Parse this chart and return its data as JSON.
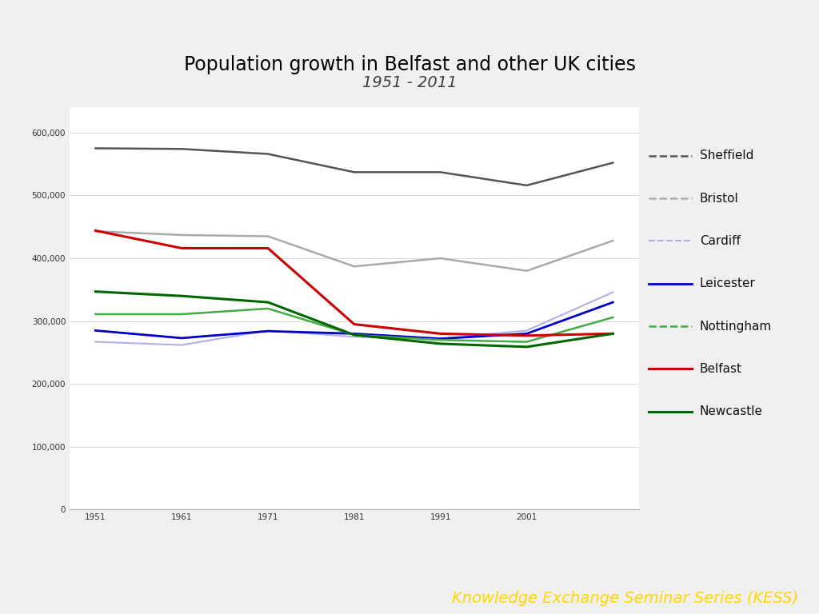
{
  "title": "Population growth in Belfast and other UK cities",
  "subtitle": "1951 - 2011",
  "years": [
    1951,
    1961,
    1971,
    1981,
    1991,
    2001,
    2011
  ],
  "series": {
    "Sheffield": {
      "values": [
        575000,
        574000,
        566000,
        537000,
        537000,
        516000,
        552000
      ],
      "color": "#555555",
      "linewidth": 1.8,
      "linestyle": "-"
    },
    "Bristol": {
      "values": [
        443000,
        437000,
        435000,
        387000,
        400000,
        380000,
        428000
      ],
      "color": "#aaaaaa",
      "linewidth": 1.8,
      "linestyle": "-"
    },
    "Cardiff": {
      "values": [
        267000,
        262000,
        285000,
        275000,
        272000,
        285000,
        346000
      ],
      "color": "#b0b0e8",
      "linewidth": 1.5,
      "linestyle": "-"
    },
    "Leicester": {
      "values": [
        285000,
        273000,
        284000,
        280000,
        272000,
        280000,
        330000
      ],
      "color": "#0000cc",
      "linewidth": 2.0,
      "linestyle": "-"
    },
    "Nottingham": {
      "values": [
        311000,
        311000,
        320000,
        278000,
        270000,
        267000,
        306000
      ],
      "color": "#44aa44",
      "linewidth": 1.8,
      "linestyle": "-"
    },
    "Belfast": {
      "values": [
        444000,
        416000,
        416000,
        295000,
        280000,
        277000,
        280000
      ],
      "color": "#cc0000",
      "linewidth": 2.2,
      "linestyle": "-"
    },
    "Newcastle": {
      "values": [
        347000,
        340000,
        330000,
        278000,
        264000,
        259000,
        280000
      ],
      "color": "#006600",
      "linewidth": 2.2,
      "linestyle": "-"
    }
  },
  "ylim": [
    0,
    640000
  ],
  "yticks": [
    0,
    100000,
    200000,
    300000,
    400000,
    500000,
    600000
  ],
  "xticks": [
    1951,
    1961,
    1971,
    1981,
    1991,
    2001
  ],
  "slide_bg": "#f0f0f0",
  "chart_bg": "#ffffff",
  "top_bar_color": "#5b9bd5",
  "kess_bar_color": "#5b9bd5",
  "kess_text_color": "#ffd700",
  "title_color": "#000000",
  "subtitle_color": "#404040",
  "legend_order": [
    "Sheffield",
    "Bristol",
    "Cardiff",
    "Leicester",
    "Nottingham",
    "Belfast",
    "Newcastle"
  ],
  "legend_dash_styles": [
    "--",
    "--",
    "--",
    "-",
    "--",
    "-",
    "-"
  ]
}
